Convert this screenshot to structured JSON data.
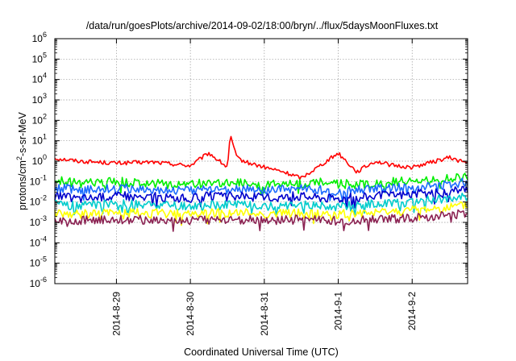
{
  "chart_data": {
    "type": "line",
    "title": "/data/run/goesPlots/archive/2014-09-02/18:00/bryn/../flux/5daysMoonFluxes.txt",
    "xlabel": "Coordinated Universal Time (UTC)",
    "ylabel": "protons/cm²-s-sr-MeV",
    "ylabel_parts": {
      "pre": "protons/cm",
      "sup": "2",
      "post": "-s-sr-MeV"
    },
    "yscale": "log",
    "ylim": [
      1e-06,
      1000000
    ],
    "xlim": [
      "2014-08-28 04:00",
      "2014-09-02 18:00"
    ],
    "grid": true,
    "legend": "none",
    "x_ticks": [
      "2014-8-29",
      "2014-8-30",
      "2014-8-31",
      "2014-9-1",
      "2014-9-2"
    ],
    "y_ticks": [
      {
        "base": "10",
        "exp": "-6"
      },
      {
        "base": "10",
        "exp": "-5"
      },
      {
        "base": "10",
        "exp": "-4"
      },
      {
        "base": "10",
        "exp": "-3"
      },
      {
        "base": "10",
        "exp": "-2"
      },
      {
        "base": "10",
        "exp": "-1"
      },
      {
        "base": "10",
        "exp": "0"
      },
      {
        "base": "10",
        "exp": "1"
      },
      {
        "base": "10",
        "exp": "2"
      },
      {
        "base": "10",
        "exp": "3"
      },
      {
        "base": "10",
        "exp": "4"
      },
      {
        "base": "10",
        "exp": "5"
      },
      {
        "base": "10",
        "exp": "6"
      }
    ],
    "x": [
      "2014-08-28 04:00",
      "2014-08-28 12:00",
      "2014-08-29 00:00",
      "2014-08-29 12:00",
      "2014-08-30 00:00",
      "2014-08-30 06:00",
      "2014-08-30 12:00",
      "2014-08-30 13:00",
      "2014-08-30 15:00",
      "2014-08-30 18:00",
      "2014-08-31 00:00",
      "2014-08-31 06:00",
      "2014-08-31 12:00",
      "2014-08-31 18:00",
      "2014-09-01 00:00",
      "2014-09-01 06:00",
      "2014-09-01 12:00",
      "2014-09-01 18:00",
      "2014-09-02 00:00",
      "2014-09-02 12:00",
      "2014-09-02 18:00"
    ],
    "series": [
      {
        "color": "#ff0000",
        "values": [
          1.4,
          1.0,
          0.8,
          0.9,
          0.6,
          2.5,
          0.5,
          18,
          1.5,
          0.9,
          0.5,
          0.3,
          0.15,
          0.6,
          2.5,
          0.3,
          1.0,
          0.6,
          0.5,
          1.5,
          0.8
        ]
      },
      {
        "color": "#00ee00",
        "values": [
          0.12,
          0.08,
          0.1,
          0.08,
          0.07,
          0.09,
          0.08,
          0.1,
          0.08,
          0.09,
          0.07,
          0.09,
          0.08,
          0.1,
          0.08,
          0.07,
          0.09,
          0.1,
          0.1,
          0.14,
          0.2
        ]
      },
      {
        "color": "#1a6bff",
        "values": [
          0.05,
          0.04,
          0.05,
          0.04,
          0.035,
          0.045,
          0.04,
          0.05,
          0.04,
          0.045,
          0.035,
          0.04,
          0.045,
          0.04,
          0.035,
          0.04,
          0.045,
          0.05,
          0.05,
          0.07,
          0.1
        ]
      },
      {
        "color": "#0000cc",
        "values": [
          0.02,
          0.015,
          0.02,
          0.018,
          0.015,
          0.02,
          0.017,
          0.02,
          0.018,
          0.02,
          0.015,
          0.018,
          0.02,
          0.017,
          0.015,
          0.018,
          0.02,
          0.022,
          0.025,
          0.03,
          0.04
        ]
      },
      {
        "color": "#00cccc",
        "values": [
          0.008,
          0.007,
          0.008,
          0.007,
          0.006,
          0.007,
          0.007,
          0.008,
          0.007,
          0.008,
          0.006,
          0.007,
          0.008,
          0.007,
          0.006,
          0.007,
          0.008,
          0.009,
          0.01,
          0.015,
          0.02
        ]
      },
      {
        "color": "#ffff00",
        "values": [
          0.003,
          0.0025,
          0.003,
          0.0028,
          0.0025,
          0.003,
          0.0027,
          0.003,
          0.0028,
          0.003,
          0.0025,
          0.0028,
          0.003,
          0.0027,
          0.0025,
          0.0028,
          0.003,
          0.0035,
          0.004,
          0.0055,
          0.007
        ]
      },
      {
        "color": "#8b2252",
        "values": [
          0.0014,
          0.0013,
          0.0014,
          0.0013,
          0.0012,
          0.0013,
          0.0013,
          0.0014,
          0.0013,
          0.0014,
          0.0012,
          0.0013,
          0.0014,
          0.0013,
          0.0012,
          0.0013,
          0.0014,
          0.0015,
          0.0017,
          0.0022,
          0.0028
        ]
      }
    ]
  }
}
